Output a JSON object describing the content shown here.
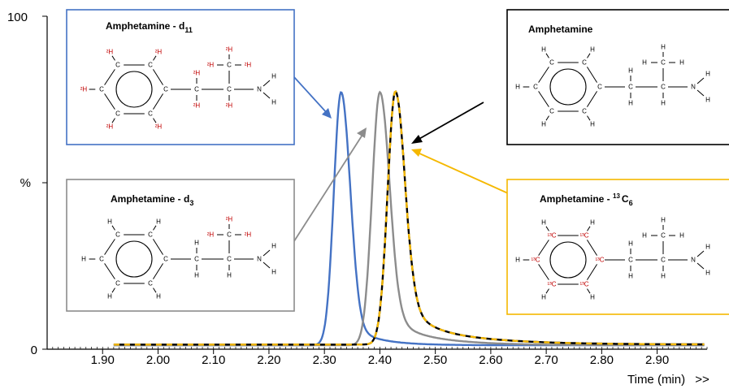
{
  "chart_data": {
    "type": "line",
    "xlabel": "Time (min)",
    "xlabel_suffix": ">>",
    "ylabel": "%",
    "xlim": [
      1.8,
      2.99
    ],
    "ylim": [
      0,
      100
    ],
    "x_ticks": [
      "1.90",
      "2.00",
      "2.10",
      "2.20",
      "2.30",
      "2.40",
      "2.50",
      "2.60",
      "2.70",
      "2.80",
      "2.90"
    ],
    "y_ticks": [
      "0",
      "%",
      "100"
    ],
    "baseline_start": 1.92,
    "baseline_end": 2.985,
    "series": [
      {
        "name": "Amphetamine - d11",
        "color": "#4472c4",
        "peak_x": 2.33,
        "peak_y": 76,
        "sigma_left": 0.013,
        "tail": 0.012,
        "baseline": 1.2
      },
      {
        "name": "Amphetamine - d3",
        "color": "#8c8c8c",
        "peak_x": 2.4,
        "peak_y": 76,
        "sigma_left": 0.014,
        "tail": 0.02,
        "baseline": 1.2
      },
      {
        "name": "Amphetamine",
        "color": "#000000",
        "peak_x": 2.428,
        "peak_y": 76,
        "sigma_left": 0.014,
        "tail": 0.028,
        "baseline": 1.4
      },
      {
        "name": "Amphetamine - 13C6",
        "color": "#f5b800",
        "peak_x": 2.428,
        "peak_y": 76,
        "sigma_left": 0.014,
        "tail": 0.028,
        "baseline": 1.4,
        "dashed": true
      }
    ]
  },
  "labels": {
    "d11": {
      "name": "Amphetamine - d",
      "sub": "11"
    },
    "d3": {
      "name": "Amphetamine - d",
      "sub": "3"
    },
    "amph": {
      "name": "Amphetamine"
    },
    "c13": {
      "name": "Amphetamine - ",
      "sup": "13",
      "after": "C",
      "sub": "6"
    }
  },
  "atoms": {
    "C": "C",
    "H": "H",
    "N": "N",
    "D": "²H",
    "C13": "¹³C"
  },
  "colors": {
    "d11_box": "#4472c4",
    "d3_box": "#8c8c8c",
    "amph_box": "#000000",
    "c13_box": "#f5b800",
    "isotope": "#c00000"
  }
}
